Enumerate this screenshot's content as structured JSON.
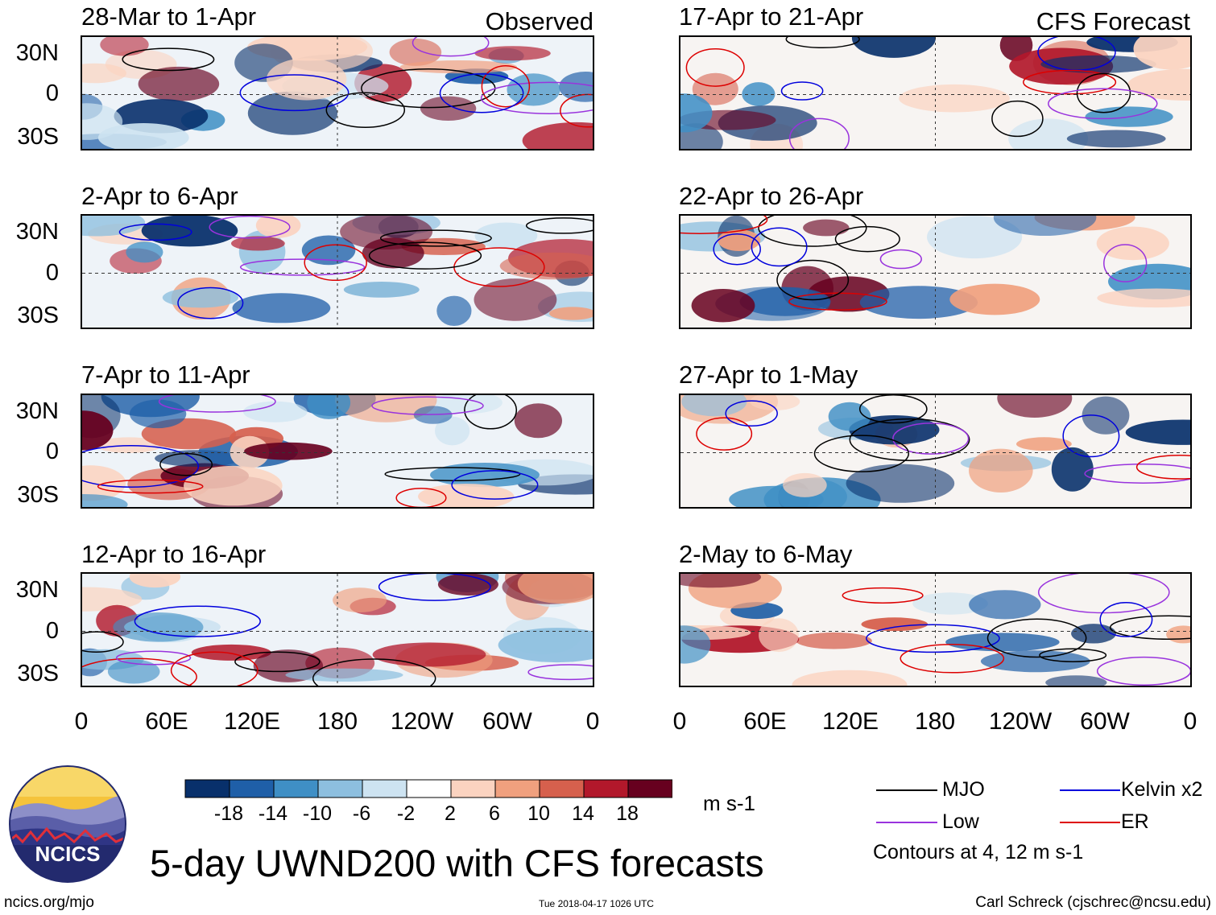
{
  "title": "5-day UWND200 with CFS forecasts",
  "corner_labels": {
    "observed": "Observed",
    "forecast": "CFS Forecast"
  },
  "units": "m s-1",
  "contour_note": "Contours at 4, 12 m s-1",
  "footer": {
    "left": "ncics.org/mjo",
    "center": "Tue 2018-04-17 1026 UTC",
    "right": "Carl Schreck (cjschrec@ncsu.edu)"
  },
  "logo": {
    "text": "NCICS"
  },
  "legend": [
    {
      "label": "MJO",
      "color": "#000000"
    },
    {
      "label": "Kelvin x2",
      "color": "#0000dd"
    },
    {
      "label": "Low",
      "color": "#9933dd"
    },
    {
      "label": "ER",
      "color": "#dd0000"
    }
  ],
  "colorbar": {
    "ticks": [
      "-18",
      "-14",
      "-10",
      "-6",
      "-2",
      "2",
      "6",
      "10",
      "14",
      "18"
    ],
    "colors": [
      "#08306b",
      "#1f5fa8",
      "#3f8fc5",
      "#8dbfdf",
      "#cde3f1",
      "#ffffff",
      "#fbd3c0",
      "#f0a07e",
      "#d6604d",
      "#b2182b",
      "#67001f"
    ]
  },
  "chart_data": {
    "type": "heatmap",
    "variable": "UWND200",
    "lat_ticks": [
      "30N",
      "0",
      "30S"
    ],
    "lon_ticks": [
      "0",
      "60E",
      "120E",
      "180",
      "120W",
      "60W",
      "0"
    ],
    "panels": [
      {
        "title": "28-Mar to 1-Apr",
        "kind": "Observed"
      },
      {
        "title": "2-Apr to 6-Apr",
        "kind": "Observed"
      },
      {
        "title": "7-Apr to 11-Apr",
        "kind": "Observed"
      },
      {
        "title": "12-Apr to 16-Apr",
        "kind": "Observed"
      },
      {
        "title": "17-Apr to 21-Apr",
        "kind": "CFS Forecast"
      },
      {
        "title": "22-Apr to 26-Apr",
        "kind": "CFS Forecast"
      },
      {
        "title": "27-Apr to 1-May",
        "kind": "CFS Forecast"
      },
      {
        "title": "2-May to 6-May",
        "kind": "CFS Forecast"
      }
    ]
  }
}
